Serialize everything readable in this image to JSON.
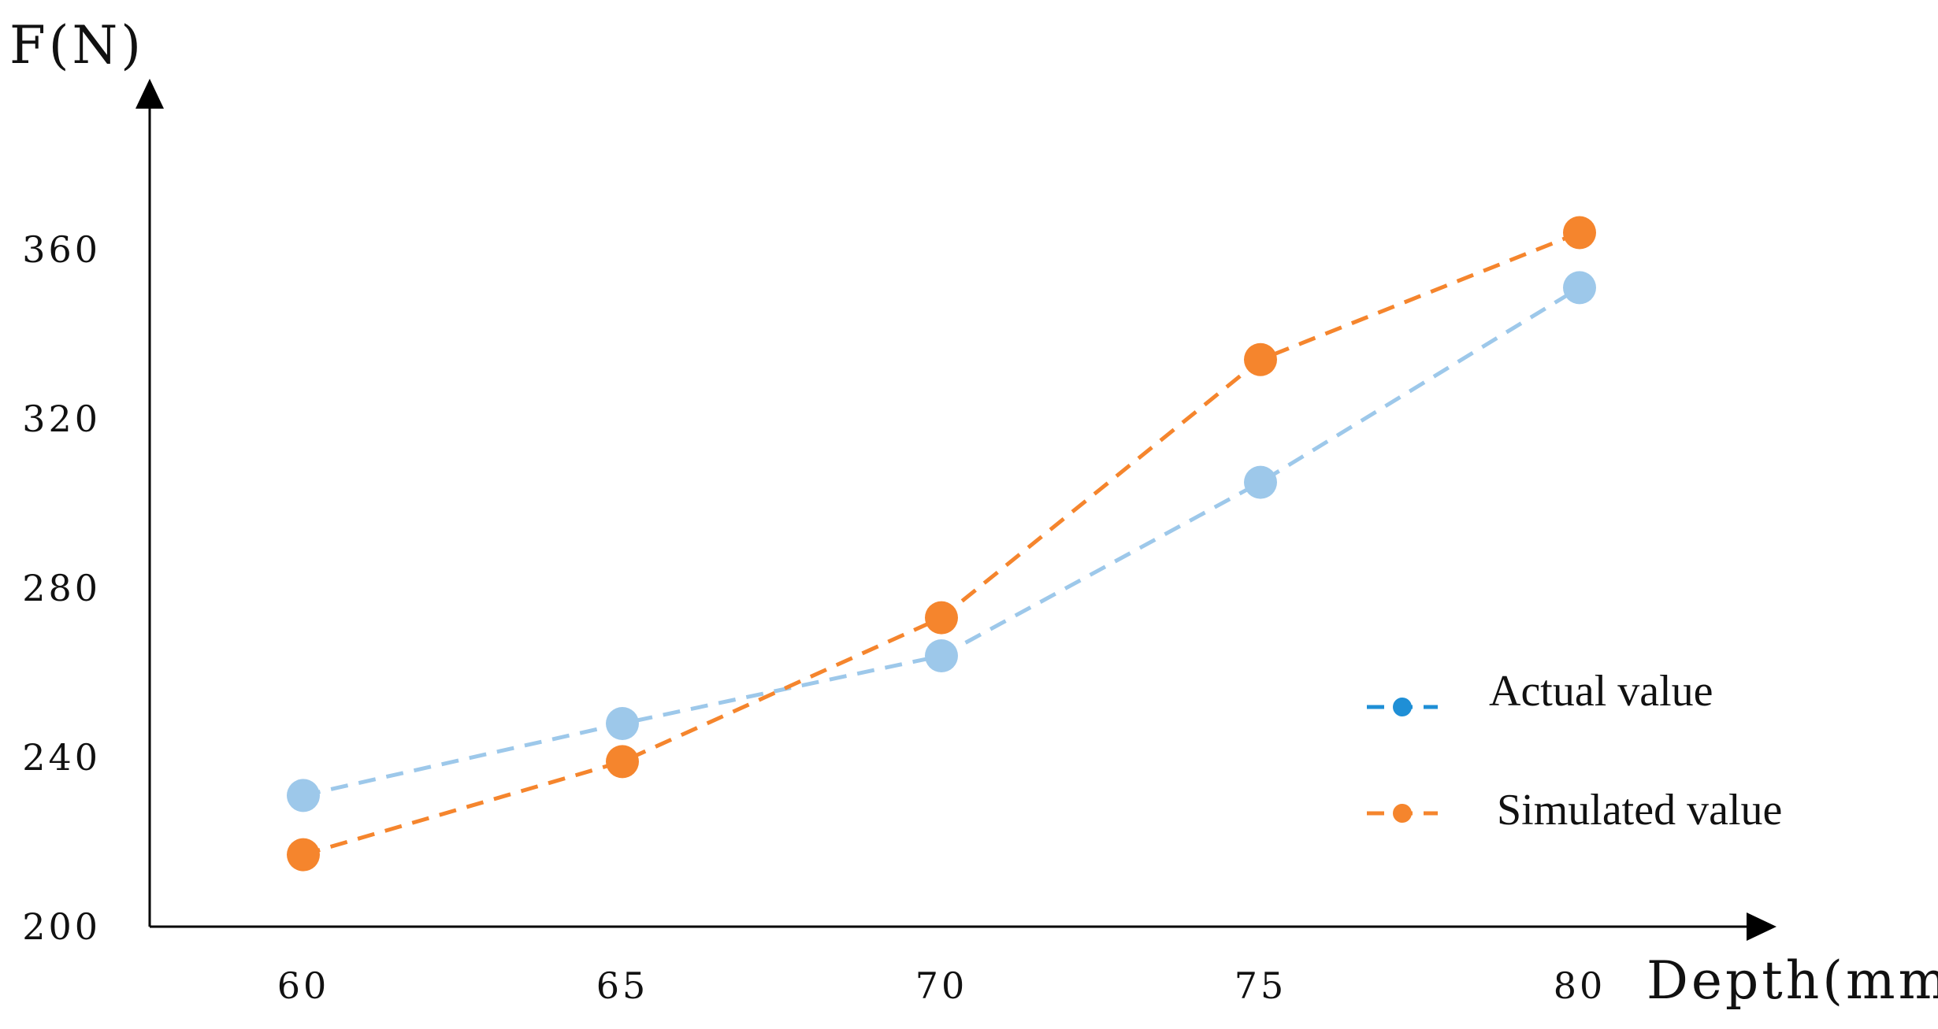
{
  "chart_data": {
    "type": "line",
    "ylabel": "F(N)",
    "xlabel": "Depth(mm)",
    "categories": [
      "60",
      "65",
      "70",
      "75",
      "80"
    ],
    "ylim": [
      200,
      390
    ],
    "yticks": [
      "200",
      "240",
      "280",
      "320",
      "360"
    ],
    "grid": false,
    "legend_position": "bottom-right",
    "series": [
      {
        "name": "Actual value",
        "values": [
          231,
          248,
          264,
          305,
          351
        ],
        "color": "#9dc8ea",
        "legend_color": "#1f8fd6",
        "style": "dashed"
      },
      {
        "name": "Simulated value",
        "values": [
          217,
          239,
          273,
          334,
          364
        ],
        "color": "#f5852d",
        "legend_color": "#f5852d",
        "style": "dashed"
      }
    ]
  }
}
